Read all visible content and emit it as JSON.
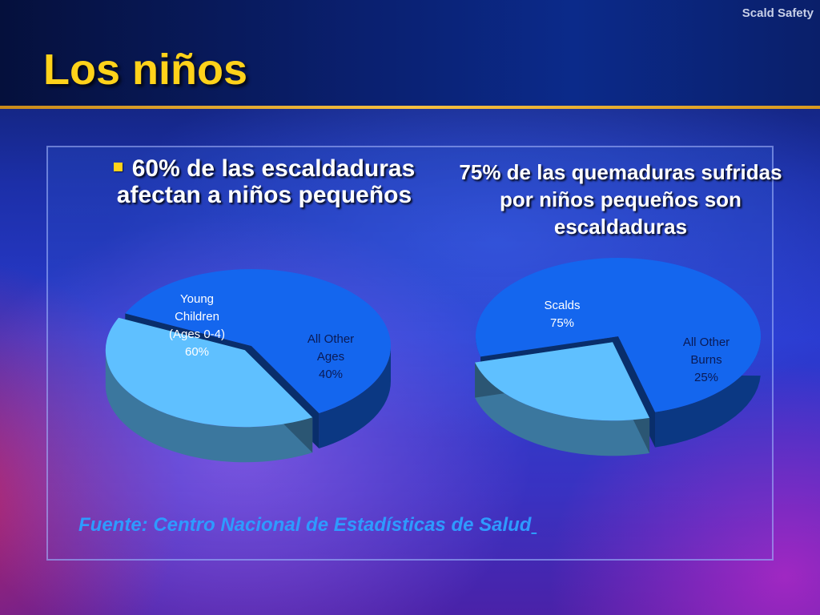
{
  "header": {
    "brand": "Scald Safety",
    "title": "Los niños"
  },
  "left": {
    "bullet_text": "60% de las escaldaduras afectan a niños pequeños"
  },
  "right": {
    "stat_text": "75% de las quemaduras sufridas por niños pequeños son escaldaduras"
  },
  "footer": {
    "source": "Fuente: Centro Nacional de Estadísticas de Salud"
  },
  "colors": {
    "major_slice": "#1466ee",
    "minor_slice": "#5fc0ff",
    "title_gold": "#ffd21a",
    "source_blue": "#2e9bff"
  },
  "chart_data": [
    {
      "type": "pie",
      "slices": [
        {
          "label_lines": [
            "Young",
            "Children",
            "(Ages 0-4)",
            "60%"
          ],
          "value": 60
        },
        {
          "label_lines": [
            "All Other",
            "Ages",
            "40%"
          ],
          "value": 40
        }
      ]
    },
    {
      "type": "pie",
      "slices": [
        {
          "label_lines": [
            "Scalds",
            "75%"
          ],
          "value": 75
        },
        {
          "label_lines": [
            "All Other",
            "Burns",
            "25%"
          ],
          "value": 25
        }
      ]
    }
  ]
}
